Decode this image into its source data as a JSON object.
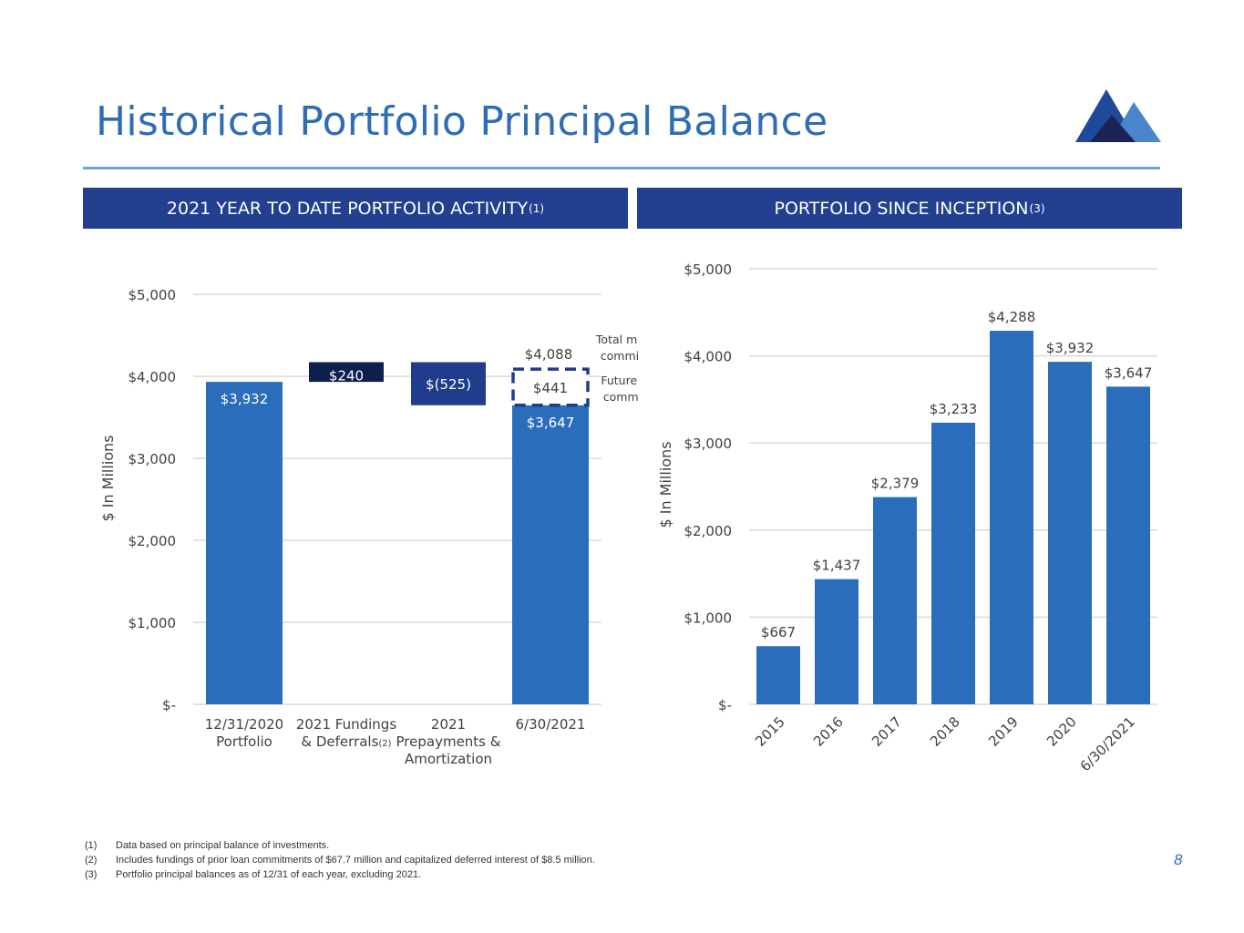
{
  "page": {
    "title": "Historical Portfolio Principal Balance",
    "page_number": "8"
  },
  "left_panel": {
    "banner_text": "2021 YEAR TO DATE PORTFOLIO ACTIVITY",
    "banner_sup": "(1)"
  },
  "right_panel": {
    "banner_text": "PORTFOLIO SINCE INCEPTION",
    "banner_sup": "(3)"
  },
  "footnotes": [
    {
      "num": "(1)",
      "text": "Data based on principal balance of investments."
    },
    {
      "num": "(2)",
      "text": "Includes fundings of prior loan commitments of $67.7 million and capitalized deferred interest of $8.5 million."
    },
    {
      "num": "(3)",
      "text": "Portfolio principal balances as of 12/31 of each year, excluding  2021."
    }
  ],
  "colors": {
    "brand_blue": "#2e6db4",
    "banner_navy": "#233f8f",
    "bar_blue": "#2a6ebb",
    "dark_navy": "#0e1f4d",
    "mid_navy": "#1f3d8c"
  },
  "chart_data": [
    {
      "type": "bar",
      "subtype": "waterfall",
      "ylabel": "$ In Millions",
      "ylim": [
        0,
        5000
      ],
      "yticks": [
        0,
        1000,
        2000,
        3000,
        4000,
        5000
      ],
      "ytick_labels": [
        "$-",
        "$1,000",
        "$2,000",
        "$3,000",
        "$4,000",
        "$5,000"
      ],
      "categories": [
        {
          "line1": "12/31/2020",
          "line2": "Portfolio",
          "line3": "",
          "sup": ""
        },
        {
          "line1": "2021 Fundings",
          "line2": "& Deferrals",
          "line3": "",
          "sup": "(2)"
        },
        {
          "line1": "2021",
          "line2": "Prepayments &",
          "line3": "Amortization",
          "sup": ""
        },
        {
          "line1": "6/30/2021",
          "line2": "",
          "line3": "",
          "sup": ""
        }
      ],
      "bars": [
        {
          "base": 0,
          "top": 3932,
          "label": "$3,932",
          "kind": "total"
        },
        {
          "base": 3932,
          "top": 4172,
          "label": "$240",
          "kind": "increase"
        },
        {
          "base": 3647,
          "top": 4172,
          "label": "$(525)",
          "kind": "decrease"
        },
        {
          "base": 0,
          "top": 3647,
          "label": "$3,647",
          "kind": "total"
        }
      ],
      "future_funding": {
        "base": 3647,
        "top": 4088,
        "value": 441,
        "label": "$441",
        "total_label": "$4,088"
      },
      "annotations": {
        "total_max_line1": "Total maximum",
        "total_max_line2": "commitments",
        "future_line1": "Future funding",
        "future_line2": "commitments"
      }
    },
    {
      "type": "bar",
      "ylabel": "$ In Millions",
      "ylim": [
        0,
        5000
      ],
      "yticks": [
        0,
        1000,
        2000,
        3000,
        4000,
        5000
      ],
      "ytick_labels": [
        "$-",
        "$1,000",
        "$2,000",
        "$3,000",
        "$4,000",
        "$5,000"
      ],
      "categories": [
        "2015",
        "2016",
        "2017",
        "2018",
        "2019",
        "2020",
        "6/30/2021"
      ],
      "values": [
        667,
        1437,
        2379,
        3233,
        4288,
        3932,
        3647
      ],
      "labels": [
        "$667",
        "$1,437",
        "$2,379",
        "$3,233",
        "$4,288",
        "$3,932",
        "$3,647"
      ]
    }
  ]
}
